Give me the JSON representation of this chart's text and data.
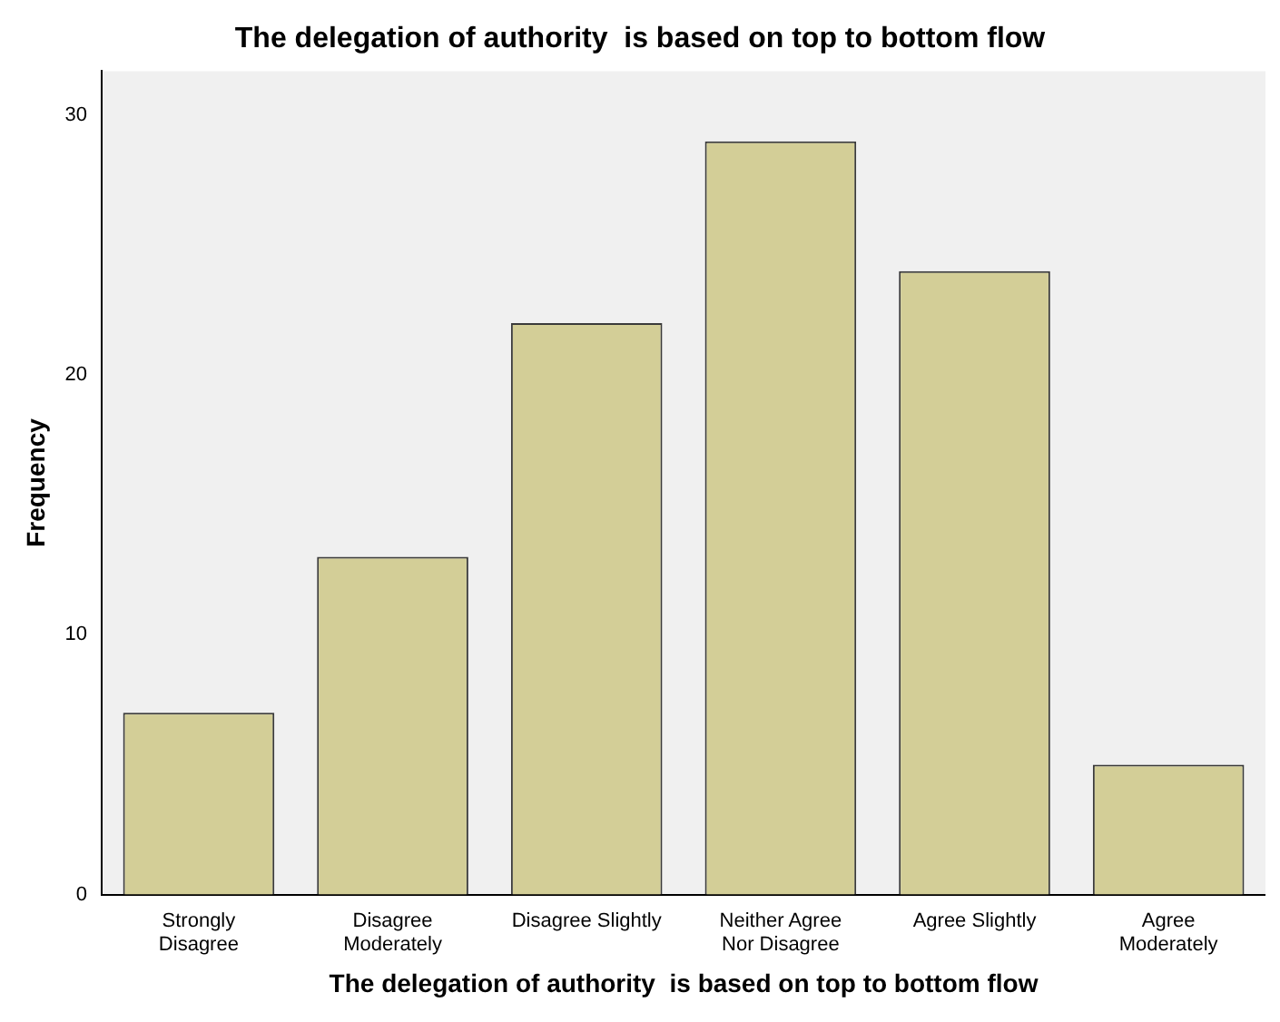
{
  "chart_data": {
    "type": "bar",
    "title": "The delegation of authority  is based on top to bottom flow",
    "xlabel": "The delegation of authority  is based on top to bottom flow",
    "ylabel": "Frequency",
    "categories": [
      "Strongly\nDisagree",
      "Disagree\nModerately",
      "Disagree Slightly",
      "Neither Agree\nNor Disagree",
      "Agree Slightly",
      "Agree\nModerately"
    ],
    "values": [
      7,
      13,
      22,
      29,
      24,
      5
    ],
    "color": "#d3ce97",
    "ylim": [
      0,
      31.7
    ],
    "yticks": [
      0,
      10,
      20,
      30
    ],
    "grid": false,
    "legend": false
  }
}
